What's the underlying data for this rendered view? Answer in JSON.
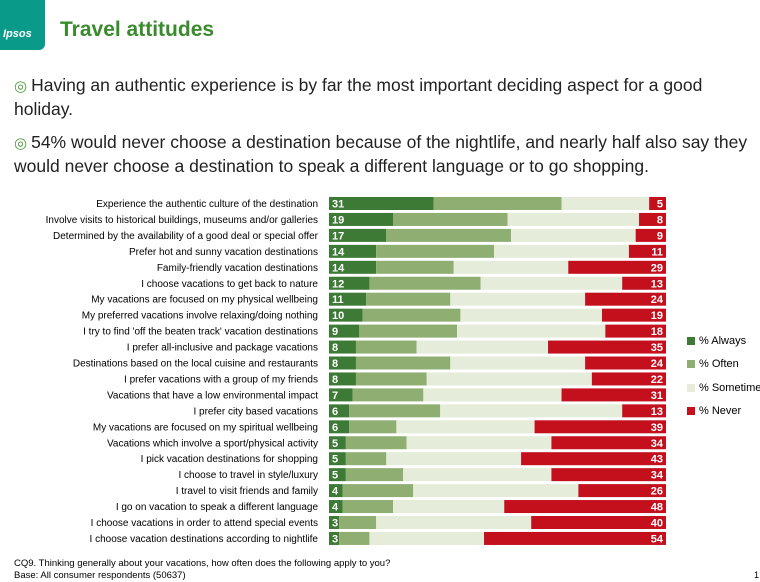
{
  "header": {
    "title": "Travel attitudes",
    "logo_text": "Ipsos"
  },
  "bullets": [
    "Having an authentic experience is by far the most important deciding aspect for a good holiday.",
    "54% would never choose a destination because of the nightlife, and nearly half also say they would never choose a destination to speak a different language or to go shopping."
  ],
  "chart_data": {
    "type": "bar",
    "orientation": "horizontal",
    "stacked": true,
    "categories": [
      "Experience the authentic culture of the destination",
      "Involve visits to historical buildings, museums and/or galleries",
      "Determined by the availability of a good deal or special offer",
      "Prefer hot and sunny vacation destinations",
      "Family-friendly vacation destinations",
      "I choose vacations to get back to nature",
      "My vacations are focused on my physical wellbeing",
      "My preferred vacations involve relaxing/doing nothing",
      "I try to find 'off the beaten track' vacation destinations",
      "I prefer all-inclusive and package vacations",
      "Destinations based on the local cuisine and restaurants",
      "I prefer vacations with a group of my friends",
      "Vacations that have a low environmental impact",
      "I prefer city based vacations",
      "My vacations are focused on my spiritual wellbeing",
      "Vacations which involve a sport/physical activity",
      "I pick vacation destinations for shopping",
      "I choose to travel in style/luxury",
      "I travel to visit friends and family",
      "I go on vacation to speak a different language",
      "I choose vacations in order to attend special events",
      "I choose vacation destinations according to nightlife"
    ],
    "series": [
      {
        "name": "% Always",
        "color": "#3d7a35",
        "labeled": true,
        "values": [
          31,
          19,
          17,
          14,
          14,
          12,
          11,
          10,
          9,
          8,
          8,
          8,
          7,
          6,
          6,
          5,
          5,
          5,
          4,
          4,
          3,
          3
        ]
      },
      {
        "name": "% Often",
        "color": "#8fae72",
        "labeled": false,
        "values": [
          38,
          34,
          37,
          35,
          23,
          33,
          25,
          29,
          29,
          18,
          28,
          21,
          21,
          27,
          14,
          18,
          12,
          17,
          21,
          15,
          11,
          9
        ]
      },
      {
        "name": "% Sometimes",
        "color": "#e5ecd9",
        "labeled": false,
        "values": [
          26,
          39,
          37,
          40,
          34,
          42,
          40,
          42,
          44,
          39,
          40,
          49,
          41,
          54,
          41,
          43,
          40,
          44,
          49,
          33,
          46,
          34
        ]
      },
      {
        "name": "% Never",
        "color": "#c40f1d",
        "labeled": true,
        "values": [
          5,
          8,
          9,
          11,
          29,
          13,
          24,
          19,
          18,
          35,
          24,
          22,
          31,
          13,
          39,
          34,
          43,
          34,
          26,
          48,
          40,
          54
        ]
      }
    ],
    "xlim": [
      0,
      100
    ],
    "legend": "right"
  },
  "footnotes": [
    "CQ9. Thinking generally about your vacations, how often does the following apply to you?",
    "Base: All consumer respondents (50637)"
  ],
  "page_number": "1"
}
